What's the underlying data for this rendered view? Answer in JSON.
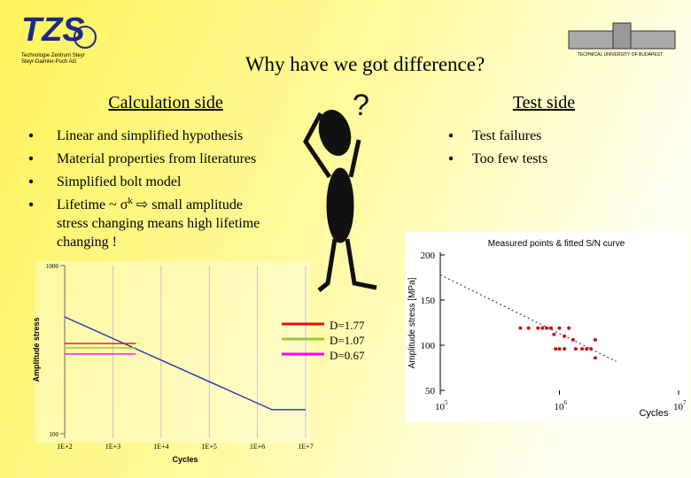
{
  "logo_left": {
    "mark": "TZS",
    "line1": "Technologie Zentrum Steyr",
    "line2": "Steyr-Daimler-Puch AG"
  },
  "logo_right": {
    "caption": "TECHNICAL UNIVERSITY OF BUDAPEST"
  },
  "title": "Why have we got difference?",
  "left_heading": "Calculation side",
  "right_heading": "Test side",
  "figure_mark": "?",
  "left_bullets": [
    "Linear and simplified hypothesis",
    "Material properties from literatures",
    "Simplified bolt model",
    {
      "lead": "Lifetime ~ σ",
      "sup": "k",
      "rest": " ⇨  small amplitude",
      "more": [
        "stress changing means high lifetime",
        "changing !"
      ]
    }
  ],
  "right_bullets": [
    "Test failures",
    "Too few tests"
  ],
  "left_chart": {
    "y_label": "Amplitude stress",
    "x_label": "Cycles",
    "log_x": true,
    "log_y": true,
    "xlim": [
      100,
      10000000
    ],
    "ylim": [
      100,
      1000
    ],
    "xticks": [
      {
        "value": 100,
        "label": "1E+2"
      },
      {
        "value": 1000,
        "label": "1E+3"
      },
      {
        "value": 10000,
        "label": "1E+4"
      },
      {
        "value": 100000,
        "label": "1E+5"
      },
      {
        "value": 1000000,
        "label": "1E+6"
      },
      {
        "value": 10000000,
        "label": "1E+7"
      }
    ],
    "yticks": [
      100,
      1000
    ],
    "series": [
      {
        "color": "#2233bb",
        "x": [
          100,
          2000000,
          10000000
        ],
        "values": [
          495,
          139,
          139
        ]
      },
      {
        "name": "D=1.77",
        "color": "#e01010",
        "x": [
          100,
          3000
        ],
        "values": [
          344,
          344
        ]
      },
      {
        "name": "D=1.07",
        "color": "#99cc33",
        "x": [
          100,
          3000
        ],
        "values": [
          324,
          324
        ]
      },
      {
        "name": "D=0.67",
        "color": "#ff00ff",
        "x": [
          100,
          3000
        ],
        "values": [
          298,
          298
        ]
      }
    ]
  },
  "right_chart": {
    "title": "Measured points & fitted S/N curve",
    "y_label": "Amplitude stress [MPa]",
    "x_label": "Cycles",
    "log_x": true,
    "xlim": [
      100000,
      10000000
    ],
    "ylim": [
      50,
      200
    ],
    "xticks": [
      {
        "value": 100000,
        "label": "10",
        "exponent": "5"
      },
      {
        "value": 1000000,
        "label": "10",
        "exponent": "6"
      },
      {
        "value": 10000000,
        "label": "10",
        "exponent": "7"
      }
    ],
    "yticks": [
      50,
      100,
      150,
      200
    ],
    "points": {
      "color": "#cc1111",
      "x": [
        470000,
        550000,
        660000,
        720000,
        780000,
        850000,
        1000000,
        1200000,
        900000,
        1100000,
        1300000,
        2000000,
        930000,
        1000000,
        1100000,
        1370000,
        1550000,
        1690000,
        1840000,
        2000000
      ],
      "values": [
        119,
        119,
        119,
        119,
        119,
        119,
        119,
        119,
        112,
        110,
        106,
        106,
        96,
        96,
        96,
        96,
        96,
        96,
        96,
        86
      ]
    },
    "fit": {
      "color": "#444444",
      "x": [
        100000,
        3000000
      ],
      "values": [
        178,
        82
      ]
    }
  }
}
